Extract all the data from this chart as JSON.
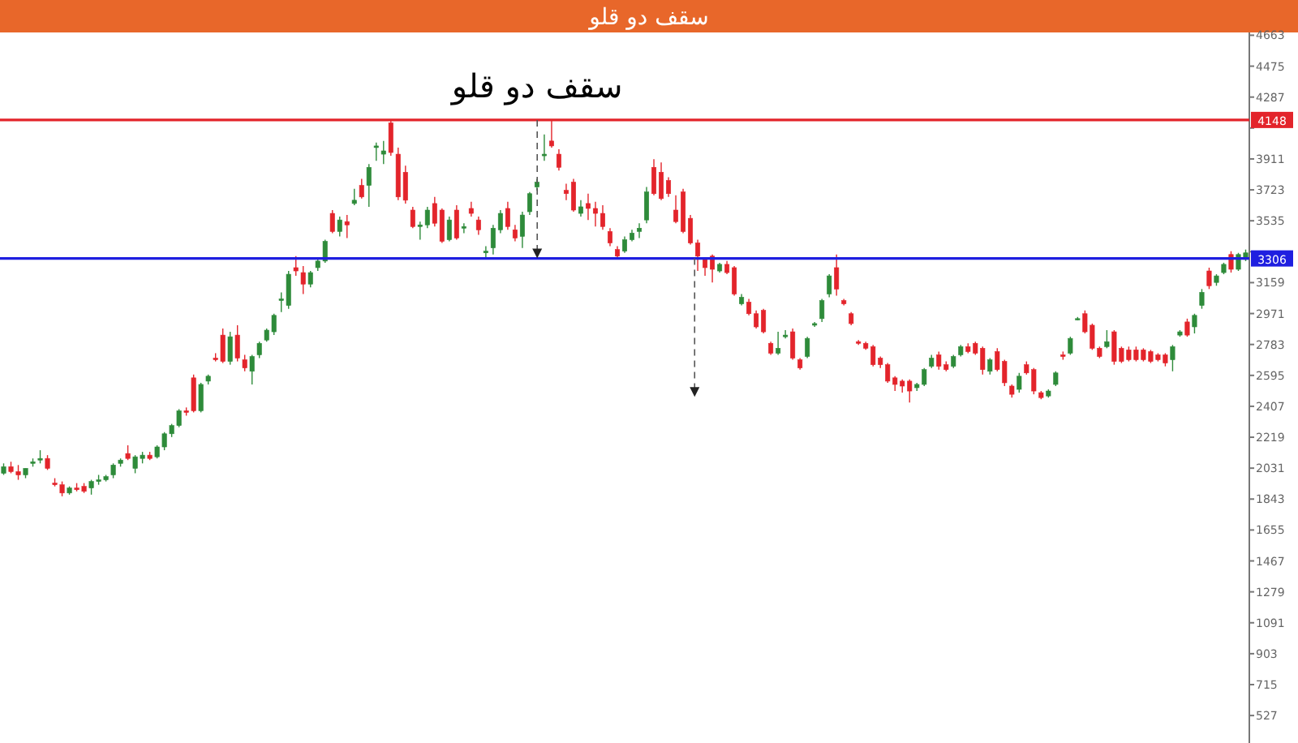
{
  "chart_data": {
    "type": "candlestick",
    "title": "سقف دو قلو",
    "annotations": [
      "سقف دو قلو"
    ],
    "categories": [
      null,
      null,
      null,
      null,
      null,
      null,
      null,
      null,
      null,
      null,
      null,
      null,
      null,
      null,
      null,
      null,
      null,
      null,
      null,
      null,
      null,
      null,
      null,
      null,
      null,
      null,
      null,
      null,
      null,
      null,
      null,
      null,
      null,
      null,
      null,
      null,
      null,
      null,
      null,
      null,
      null,
      null,
      null,
      null,
      null,
      null,
      null,
      null,
      null,
      null,
      null,
      null,
      null,
      null,
      null,
      null,
      null,
      null,
      null,
      null,
      null,
      null,
      null,
      null,
      null,
      null,
      null,
      null,
      null,
      null,
      null,
      null,
      null,
      null,
      null,
      null,
      null,
      null,
      null,
      null,
      null,
      null,
      null,
      null,
      null,
      null,
      null,
      null,
      null,
      null,
      null,
      null,
      null,
      null,
      null,
      null,
      null,
      null,
      null,
      null,
      null,
      null,
      null,
      null,
      null,
      null,
      null,
      null,
      null,
      null,
      null,
      null,
      null,
      null,
      null,
      null,
      null,
      null,
      null,
      null,
      null,
      null,
      null,
      null,
      null,
      null,
      null,
      null,
      null,
      null,
      null,
      null,
      null,
      null,
      null,
      null,
      null,
      null,
      null,
      null,
      null,
      null,
      null,
      null,
      null,
      null,
      null,
      null,
      null,
      null,
      null,
      null,
      null,
      null,
      null,
      null,
      null,
      null,
      null,
      null,
      null,
      null,
      null,
      null,
      null,
      null,
      null,
      null,
      null,
      null,
      null
    ],
    "ohlc": [
      [
        2000,
        2060,
        1990,
        2040
      ],
      [
        2040,
        2070,
        2000,
        2010
      ],
      [
        2010,
        2050,
        1960,
        1990
      ],
      [
        1990,
        2030,
        1970,
        2030
      ],
      [
        2060,
        2090,
        2040,
        2070
      ],
      [
        2080,
        2140,
        2060,
        2090
      ],
      [
        2090,
        2110,
        2020,
        2030
      ],
      [
        1940,
        1970,
        1920,
        1930
      ],
      [
        1930,
        1950,
        1860,
        1880
      ],
      [
        1880,
        1920,
        1870,
        1910
      ],
      [
        1910,
        1940,
        1890,
        1900
      ],
      [
        1920,
        1940,
        1880,
        1890
      ],
      [
        1910,
        1960,
        1870,
        1950
      ],
      [
        1950,
        1990,
        1930,
        1960
      ],
      [
        1960,
        1990,
        1950,
        1980
      ],
      [
        1990,
        2060,
        1970,
        2050
      ],
      [
        2060,
        2090,
        2040,
        2080
      ],
      [
        2120,
        2170,
        2080,
        2090
      ],
      [
        2030,
        2110,
        2000,
        2100
      ],
      [
        2090,
        2130,
        2060,
        2110
      ],
      [
        2110,
        2130,
        2080,
        2090
      ],
      [
        2100,
        2170,
        2090,
        2160
      ],
      [
        2160,
        2250,
        2140,
        2240
      ],
      [
        2240,
        2300,
        2220,
        2290
      ],
      [
        2290,
        2390,
        2280,
        2380
      ],
      [
        2380,
        2400,
        2350,
        2370
      ],
      [
        2580,
        2600,
        2370,
        2380
      ],
      [
        2380,
        2550,
        2370,
        2540
      ],
      [
        2560,
        2600,
        2540,
        2590
      ],
      [
        2700,
        2730,
        2680,
        2690
      ],
      [
        2840,
        2880,
        2670,
        2680
      ],
      [
        2680,
        2860,
        2660,
        2830
      ],
      [
        2840,
        2900,
        2680,
        2700
      ],
      [
        2690,
        2720,
        2620,
        2640
      ],
      [
        2620,
        2720,
        2540,
        2710
      ],
      [
        2720,
        2800,
        2700,
        2790
      ],
      [
        2810,
        2880,
        2800,
        2870
      ],
      [
        2860,
        2970,
        2840,
        2960
      ],
      [
        3050,
        3100,
        2980,
        3060
      ],
      [
        3020,
        3230,
        3000,
        3210
      ],
      [
        3250,
        3320,
        3200,
        3230
      ],
      [
        3220,
        3260,
        3090,
        3150
      ],
      [
        3150,
        3230,
        3130,
        3220
      ],
      [
        3250,
        3300,
        3230,
        3290
      ],
      [
        3290,
        3420,
        3280,
        3410
      ],
      [
        3580,
        3600,
        3460,
        3470
      ],
      [
        3470,
        3560,
        3440,
        3540
      ],
      [
        3530,
        3570,
        3430,
        3510
      ],
      [
        3640,
        3730,
        3630,
        3660
      ],
      [
        3750,
        3790,
        3670,
        3680
      ],
      [
        3750,
        3880,
        3620,
        3860
      ],
      [
        3980,
        4010,
        3900,
        3990
      ],
      [
        3940,
        4020,
        3880,
        3960
      ],
      [
        4130,
        4150,
        3930,
        3950
      ],
      [
        3940,
        3980,
        3660,
        3680
      ],
      [
        3830,
        3870,
        3640,
        3660
      ],
      [
        3600,
        3620,
        3490,
        3500
      ],
      [
        3500,
        3530,
        3420,
        3510
      ],
      [
        3510,
        3620,
        3490,
        3600
      ],
      [
        3640,
        3680,
        3500,
        3520
      ],
      [
        3600,
        3610,
        3400,
        3410
      ],
      [
        3420,
        3560,
        3410,
        3540
      ],
      [
        3600,
        3630,
        3420,
        3430
      ],
      [
        3490,
        3520,
        3460,
        3500
      ],
      [
        3610,
        3650,
        3560,
        3580
      ],
      [
        3540,
        3560,
        3450,
        3480
      ],
      [
        3340,
        3380,
        3310,
        3350
      ],
      [
        3370,
        3510,
        3330,
        3490
      ],
      [
        3480,
        3600,
        3460,
        3580
      ],
      [
        3610,
        3650,
        3480,
        3500
      ],
      [
        3480,
        3510,
        3410,
        3430
      ],
      [
        3440,
        3590,
        3370,
        3570
      ],
      [
        3590,
        3710,
        3570,
        3700
      ],
      [
        3740,
        3790,
        3720,
        3770
      ],
      [
        3930,
        4060,
        3900,
        3940
      ],
      [
        4020,
        4150,
        3980,
        3990
      ],
      [
        3940,
        3970,
        3840,
        3860
      ],
      [
        3720,
        3760,
        3660,
        3700
      ],
      [
        3770,
        3790,
        3590,
        3600
      ],
      [
        3580,
        3660,
        3560,
        3620
      ],
      [
        3640,
        3700,
        3540,
        3610
      ],
      [
        3610,
        3650,
        3500,
        3580
      ],
      [
        3580,
        3630,
        3480,
        3500
      ],
      [
        3470,
        3490,
        3380,
        3400
      ],
      [
        3360,
        3380,
        3300,
        3320
      ],
      [
        3350,
        3440,
        3340,
        3420
      ],
      [
        3420,
        3480,
        3410,
        3460
      ],
      [
        3470,
        3520,
        3430,
        3490
      ],
      [
        3540,
        3740,
        3520,
        3710
      ],
      [
        3860,
        3910,
        3690,
        3700
      ],
      [
        3830,
        3890,
        3660,
        3670
      ],
      [
        3780,
        3800,
        3680,
        3700
      ],
      [
        3600,
        3690,
        3520,
        3530
      ],
      [
        3710,
        3730,
        3460,
        3470
      ],
      [
        3550,
        3570,
        3390,
        3400
      ],
      [
        3400,
        3420,
        3230,
        3320
      ],
      [
        3300,
        3310,
        3200,
        3250
      ],
      [
        3320,
        3330,
        3160,
        3240
      ],
      [
        3230,
        3280,
        3220,
        3270
      ],
      [
        3270,
        3290,
        3210,
        3220
      ],
      [
        3250,
        3260,
        3080,
        3090
      ],
      [
        3030,
        3090,
        3020,
        3070
      ],
      [
        3040,
        3060,
        2960,
        2970
      ],
      [
        2970,
        2990,
        2880,
        2890
      ],
      [
        2990,
        3000,
        2850,
        2860
      ],
      [
        2790,
        2800,
        2720,
        2730
      ],
      [
        2730,
        2860,
        2720,
        2760
      ],
      [
        2830,
        2870,
        2820,
        2840
      ],
      [
        2860,
        2880,
        2690,
        2700
      ],
      [
        2690,
        2700,
        2630,
        2640
      ],
      [
        2710,
        2830,
        2700,
        2820
      ],
      [
        2900,
        2920,
        2890,
        2910
      ],
      [
        2940,
        3060,
        2920,
        3050
      ],
      [
        3090,
        3210,
        3070,
        3200
      ],
      [
        3250,
        3330,
        3080,
        3120
      ],
      [
        3050,
        3060,
        3020,
        3030
      ],
      [
        2970,
        2980,
        2900,
        2910
      ],
      [
        2800,
        2810,
        2780,
        2790
      ],
      [
        2790,
        2800,
        2750,
        2760
      ],
      [
        2770,
        2780,
        2650,
        2660
      ],
      [
        2700,
        2710,
        2640,
        2660
      ],
      [
        2660,
        2670,
        2550,
        2560
      ],
      [
        2580,
        2590,
        2500,
        2540
      ],
      [
        2560,
        2570,
        2490,
        2530
      ],
      [
        2560,
        2570,
        2430,
        2500
      ],
      [
        2520,
        2550,
        2500,
        2540
      ],
      [
        2540,
        2640,
        2530,
        2630
      ],
      [
        2650,
        2720,
        2640,
        2700
      ],
      [
        2720,
        2740,
        2630,
        2650
      ],
      [
        2660,
        2680,
        2620,
        2630
      ],
      [
        2650,
        2720,
        2640,
        2710
      ],
      [
        2720,
        2780,
        2710,
        2770
      ],
      [
        2770,
        2790,
        2730,
        2740
      ],
      [
        2790,
        2800,
        2720,
        2730
      ],
      [
        2760,
        2770,
        2600,
        2630
      ],
      [
        2620,
        2700,
        2600,
        2690
      ],
      [
        2740,
        2760,
        2620,
        2630
      ],
      [
        2680,
        2690,
        2530,
        2550
      ],
      [
        2530,
        2540,
        2460,
        2480
      ],
      [
        2510,
        2610,
        2490,
        2590
      ],
      [
        2660,
        2680,
        2600,
        2610
      ],
      [
        2630,
        2640,
        2480,
        2500
      ],
      [
        2490,
        2500,
        2450,
        2460
      ],
      [
        2470,
        2510,
        2460,
        2500
      ],
      [
        2540,
        2620,
        2530,
        2610
      ],
      [
        2720,
        2740,
        2690,
        2710
      ],
      [
        2730,
        2830,
        2720,
        2820
      ],
      [
        2940,
        2950,
        2930,
        2940
      ],
      [
        2970,
        2990,
        2850,
        2860
      ],
      [
        2900,
        2910,
        2750,
        2760
      ],
      [
        2760,
        2770,
        2700,
        2710
      ],
      [
        2770,
        2870,
        2760,
        2800
      ],
      [
        2860,
        2870,
        2660,
        2680
      ],
      [
        2760,
        2770,
        2670,
        2680
      ],
      [
        2750,
        2770,
        2680,
        2690
      ],
      [
        2750,
        2770,
        2680,
        2690
      ],
      [
        2750,
        2760,
        2680,
        2690
      ],
      [
        2740,
        2750,
        2670,
        2680
      ],
      [
        2720,
        2730,
        2680,
        2690
      ],
      [
        2720,
        2730,
        2650,
        2670
      ],
      [
        2690,
        2780,
        2620,
        2770
      ],
      [
        2840,
        2870,
        2830,
        2860
      ],
      [
        2920,
        2940,
        2830,
        2840
      ],
      [
        2890,
        2970,
        2850,
        2960
      ],
      [
        3020,
        3120,
        3000,
        3100
      ],
      [
        3230,
        3250,
        3120,
        3140
      ],
      [
        3160,
        3210,
        3140,
        3200
      ],
      [
        3220,
        3280,
        3210,
        3270
      ],
      [
        3330,
        3350,
        3220,
        3240
      ],
      [
        3240,
        3340,
        3230,
        3330
      ],
      [
        3300,
        3360,
        3290,
        3340
      ]
    ],
    "colors": [
      "#2e8b3a",
      "#e3242b",
      "#e3242b",
      "#2e8b3a",
      "#2e8b3a",
      "#2e8b3a",
      "#e3242b",
      "#e3242b",
      "#e3242b",
      "#2e8b3a",
      "#e3242b",
      "#e3242b",
      "#2e8b3a",
      "#2e8b3a",
      "#2e8b3a",
      "#2e8b3a",
      "#2e8b3a",
      "#e3242b",
      "#2e8b3a",
      "#2e8b3a",
      "#e3242b",
      "#2e8b3a",
      "#2e8b3a",
      "#2e8b3a",
      "#2e8b3a",
      "#e3242b",
      "#e3242b",
      "#2e8b3a",
      "#2e8b3a",
      "#e3242b",
      "#e3242b",
      "#2e8b3a",
      "#e3242b",
      "#e3242b",
      "#2e8b3a",
      "#2e8b3a",
      "#2e8b3a",
      "#2e8b3a",
      "#2e8b3a",
      "#2e8b3a",
      "#e3242b",
      "#e3242b",
      "#2e8b3a",
      "#2e8b3a",
      "#2e8b3a",
      "#e3242b",
      "#2e8b3a",
      "#e3242b",
      "#2e8b3a",
      "#e3242b",
      "#2e8b3a",
      "#2e8b3a",
      "#2e8b3a",
      "#e3242b",
      "#e3242b",
      "#e3242b",
      "#e3242b",
      "#2e8b3a",
      "#2e8b3a",
      "#e3242b",
      "#e3242b",
      "#2e8b3a",
      "#e3242b",
      "#2e8b3a",
      "#e3242b",
      "#e3242b",
      "#2e8b3a",
      "#2e8b3a",
      "#2e8b3a",
      "#e3242b",
      "#e3242b",
      "#2e8b3a",
      "#2e8b3a",
      "#2e8b3a",
      "#2e8b3a",
      "#e3242b",
      "#e3242b",
      "#e3242b",
      "#e3242b",
      "#2e8b3a",
      "#e3242b",
      "#e3242b",
      "#e3242b",
      "#e3242b",
      "#e3242b",
      "#2e8b3a",
      "#2e8b3a",
      "#2e8b3a",
      "#2e8b3a",
      "#e3242b",
      "#e3242b",
      "#e3242b",
      "#e3242b",
      "#e3242b",
      "#e3242b",
      "#e3242b",
      "#e3242b",
      "#e3242b",
      "#2e8b3a",
      "#e3242b",
      "#e3242b",
      "#2e8b3a",
      "#e3242b",
      "#e3242b",
      "#e3242b",
      "#e3242b",
      "#2e8b3a",
      "#2e8b3a",
      "#e3242b",
      "#e3242b",
      "#2e8b3a",
      "#2e8b3a",
      "#2e8b3a",
      "#2e8b3a",
      "#e3242b",
      "#e3242b",
      "#e3242b",
      "#e3242b",
      "#e3242b",
      "#e3242b",
      "#e3242b",
      "#e3242b",
      "#e3242b",
      "#e3242b",
      "#e3242b",
      "#2e8b3a",
      "#2e8b3a",
      "#2e8b3a",
      "#e3242b",
      "#e3242b",
      "#2e8b3a",
      "#2e8b3a",
      "#e3242b",
      "#e3242b",
      "#e3242b",
      "#2e8b3a",
      "#e3242b",
      "#e3242b",
      "#e3242b",
      "#2e8b3a",
      "#e3242b",
      "#e3242b",
      "#e3242b",
      "#2e8b3a",
      "#2e8b3a",
      "#e3242b",
      "#2e8b3a",
      "#2e8b3a",
      "#e3242b",
      "#e3242b",
      "#e3242b",
      "#2e8b3a",
      "#e3242b",
      "#e3242b",
      "#e3242b",
      "#e3242b",
      "#e3242b",
      "#e3242b",
      "#e3242b",
      "#e3242b",
      "#2e8b3a",
      "#2e8b3a",
      "#e3242b",
      "#2e8b3a",
      "#2e8b3a",
      "#e3242b",
      "#2e8b3a",
      "#2e8b3a",
      "#e3242b",
      "#2e8b3a",
      "#2e8b3a"
    ],
    "ylim": [
      360,
      4680
    ],
    "yticks": [
      527,
      715,
      903,
      1091,
      1279,
      1467,
      1655,
      1843,
      2031,
      2219,
      2407,
      2595,
      2783,
      2971,
      3159,
      {
        "value": 3347,
        "label": null
      },
      3535,
      3723,
      3911,
      {
        "value": 4099,
        "label": null
      },
      4287,
      4475,
      4663
    ],
    "ref_lines": [
      {
        "axis": "y",
        "value": 4148,
        "label": "4148",
        "color": "#e3242b"
      },
      {
        "axis": "y",
        "value": 3306,
        "label": "3306",
        "color": "#1f1fe0"
      }
    ]
  }
}
